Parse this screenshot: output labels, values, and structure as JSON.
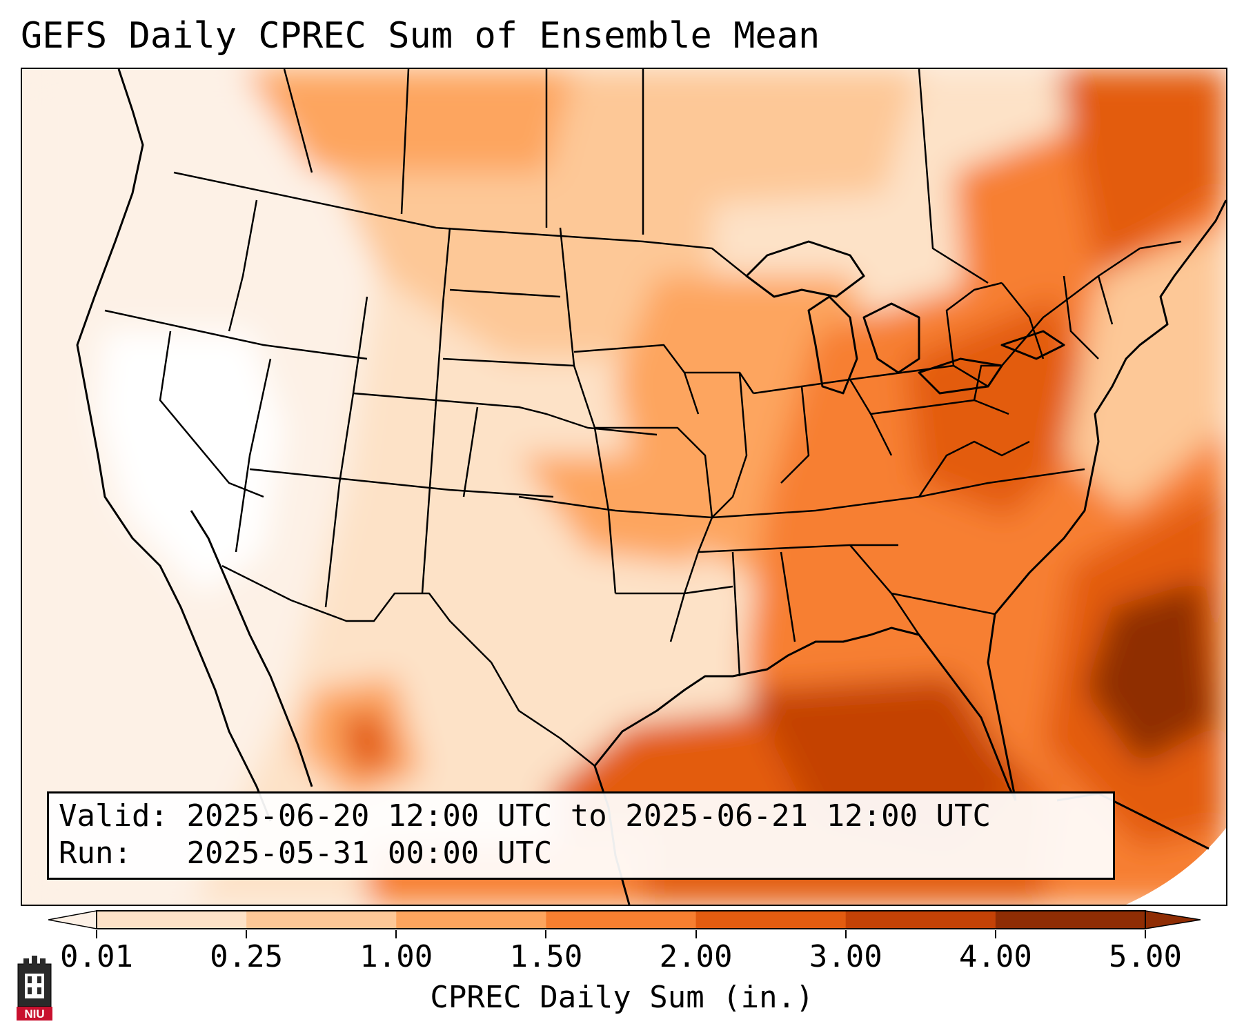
{
  "title": "GEFS Daily CPREC Sum of Ensemble Mean",
  "info": {
    "valid_label": "Valid:",
    "valid_text": "2025-06-20 12:00 UTC to 2025-06-21 12:00 UTC",
    "run_label": "Run:",
    "run_text": "2025-05-31 00:00 UTC"
  },
  "colorbar": {
    "label": "CPREC Daily Sum (in.)",
    "ticks": [
      "0.01",
      "0.25",
      "1.00",
      "1.50",
      "2.00",
      "3.00",
      "4.00",
      "5.00"
    ],
    "colors": [
      "#fdf1e6",
      "#fde2c7",
      "#fdc897",
      "#fda55e",
      "#f77f30",
      "#e35c10",
      "#c44206",
      "#8f2d04"
    ]
  },
  "logo": {
    "text": "NIU",
    "color": "#c8102e"
  }
}
